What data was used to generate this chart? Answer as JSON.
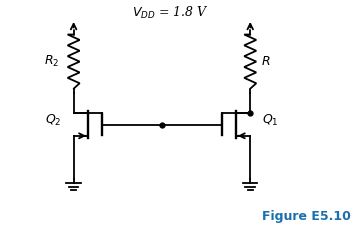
{
  "title": "Figure E5.10",
  "title_color": "#1a6faf",
  "vdd_label": "$V_{DD}$ = 1.8 V",
  "r2_label": "$R_2$",
  "r_label": "$R$",
  "q1_label": "$Q_1$",
  "q2_label": "$Q_2$",
  "background_color": "#ffffff",
  "line_color": "#000000",
  "lw": 1.3,
  "fig_width": 3.64,
  "fig_height": 2.35,
  "dpi": 100
}
